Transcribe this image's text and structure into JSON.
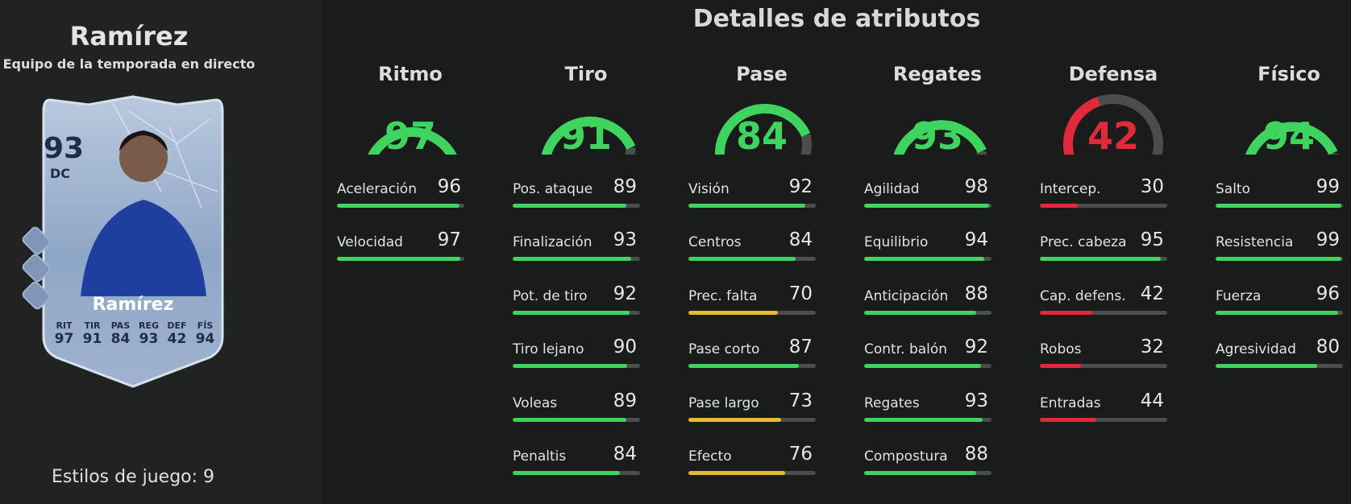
{
  "player": {
    "name": "Ramírez",
    "subtitle": "Equipo de la temporada en directo",
    "playstyles_label": "Estilos de juego: 9"
  },
  "card": {
    "rating": "93",
    "position": "DC",
    "name": "Ramírez",
    "stats": [
      {
        "label": "RIT",
        "value": "97"
      },
      {
        "label": "TIR",
        "value": "91"
      },
      {
        "label": "PAS",
        "value": "84"
      },
      {
        "label": "REG",
        "value": "93"
      },
      {
        "label": "DEF",
        "value": "42"
      },
      {
        "label": "FÍS",
        "value": "94"
      }
    ]
  },
  "section_title": "Detalles de atributos",
  "colors": {
    "green": "#3ed45f",
    "red": "#e0293a",
    "yellow": "#e8b832",
    "track": "#4b4c4c"
  },
  "categories": [
    {
      "name": "Ritmo",
      "value": 97,
      "stats": [
        {
          "label": "Aceleración",
          "value": 96
        },
        {
          "label": "Velocidad",
          "value": 97
        }
      ]
    },
    {
      "name": "Tiro",
      "value": 91,
      "stats": [
        {
          "label": "Pos. ataque",
          "value": 89
        },
        {
          "label": "Finalización",
          "value": 93
        },
        {
          "label": "Pot. de tiro",
          "value": 92
        },
        {
          "label": "Tiro lejano",
          "value": 90
        },
        {
          "label": "Voleas",
          "value": 89
        },
        {
          "label": "Penaltis",
          "value": 84
        }
      ]
    },
    {
      "name": "Pase",
      "value": 84,
      "stats": [
        {
          "label": "Visión",
          "value": 92
        },
        {
          "label": "Centros",
          "value": 84
        },
        {
          "label": "Prec. falta",
          "value": 70
        },
        {
          "label": "Pase corto",
          "value": 87
        },
        {
          "label": "Pase largo",
          "value": 73
        },
        {
          "label": "Efecto",
          "value": 76
        }
      ]
    },
    {
      "name": "Regates",
      "value": 93,
      "stats": [
        {
          "label": "Agilidad",
          "value": 98
        },
        {
          "label": "Equilibrio",
          "value": 94
        },
        {
          "label": "Anticipación",
          "value": 88
        },
        {
          "label": "Contr. balón",
          "value": 92
        },
        {
          "label": "Regates",
          "value": 93
        },
        {
          "label": "Compostura",
          "value": 88
        }
      ]
    },
    {
      "name": "Defensa",
      "value": 42,
      "stats": [
        {
          "label": "Intercep.",
          "value": 30
        },
        {
          "label": "Prec. cabeza",
          "value": 95
        },
        {
          "label": "Cap. defens.",
          "value": 42
        },
        {
          "label": "Robos",
          "value": 32
        },
        {
          "label": "Entradas",
          "value": 44
        }
      ]
    },
    {
      "name": "Físico",
      "value": 94,
      "stats": [
        {
          "label": "Salto",
          "value": 99
        },
        {
          "label": "Resistencia",
          "value": 99
        },
        {
          "label": "Fuerza",
          "value": 96
        },
        {
          "label": "Agresividad",
          "value": 80
        }
      ]
    }
  ]
}
